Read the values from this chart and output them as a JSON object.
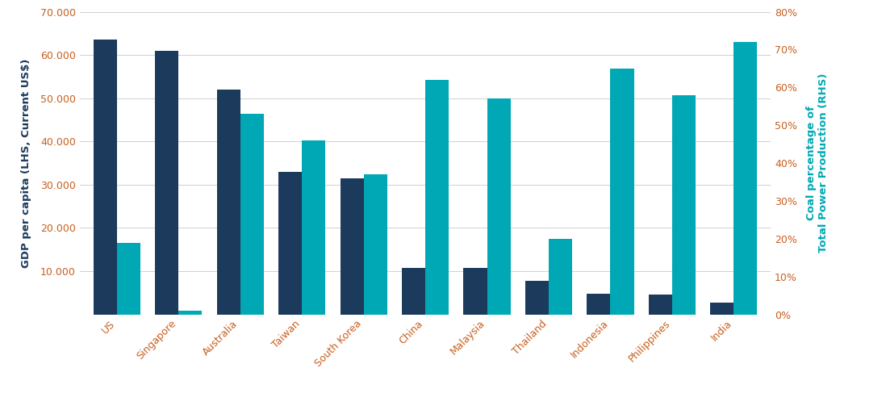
{
  "categories": [
    "US",
    "Singapore",
    "Australia",
    "Taiwan",
    "South Korea",
    "China",
    "Malaysia",
    "Thailand",
    "Indonesia",
    "Philippines",
    "India"
  ],
  "gdp_per_capita": [
    63500,
    61000,
    52000,
    33000,
    31500,
    10800,
    10800,
    7800,
    4800,
    4500,
    2800
  ],
  "coal_pct": [
    0.19,
    0.01,
    0.53,
    0.46,
    0.37,
    0.62,
    0.57,
    0.2,
    0.65,
    0.58,
    0.72
  ],
  "bar_color_gdp": "#1b3a5c",
  "bar_color_coal": "#00a8b5",
  "ylabel_left": "GDP per capita (LHS, Current US$)",
  "ylabel_right": "Coal percentage of\nTotal Power Production (RHS)",
  "ylabel_left_color": "#1b3a5c",
  "ylabel_right_color": "#00a8b5",
  "tick_label_color": "#c86020",
  "ylim_left": [
    0,
    70000
  ],
  "ylim_right": [
    0,
    0.8
  ],
  "yticks_left": [
    0,
    10000,
    20000,
    30000,
    40000,
    50000,
    60000,
    70000
  ],
  "yticks_right": [
    0.0,
    0.1,
    0.2,
    0.3,
    0.4,
    0.5,
    0.6,
    0.7,
    0.8
  ],
  "background_color": "#ffffff",
  "grid_color": "#d0d0d0"
}
